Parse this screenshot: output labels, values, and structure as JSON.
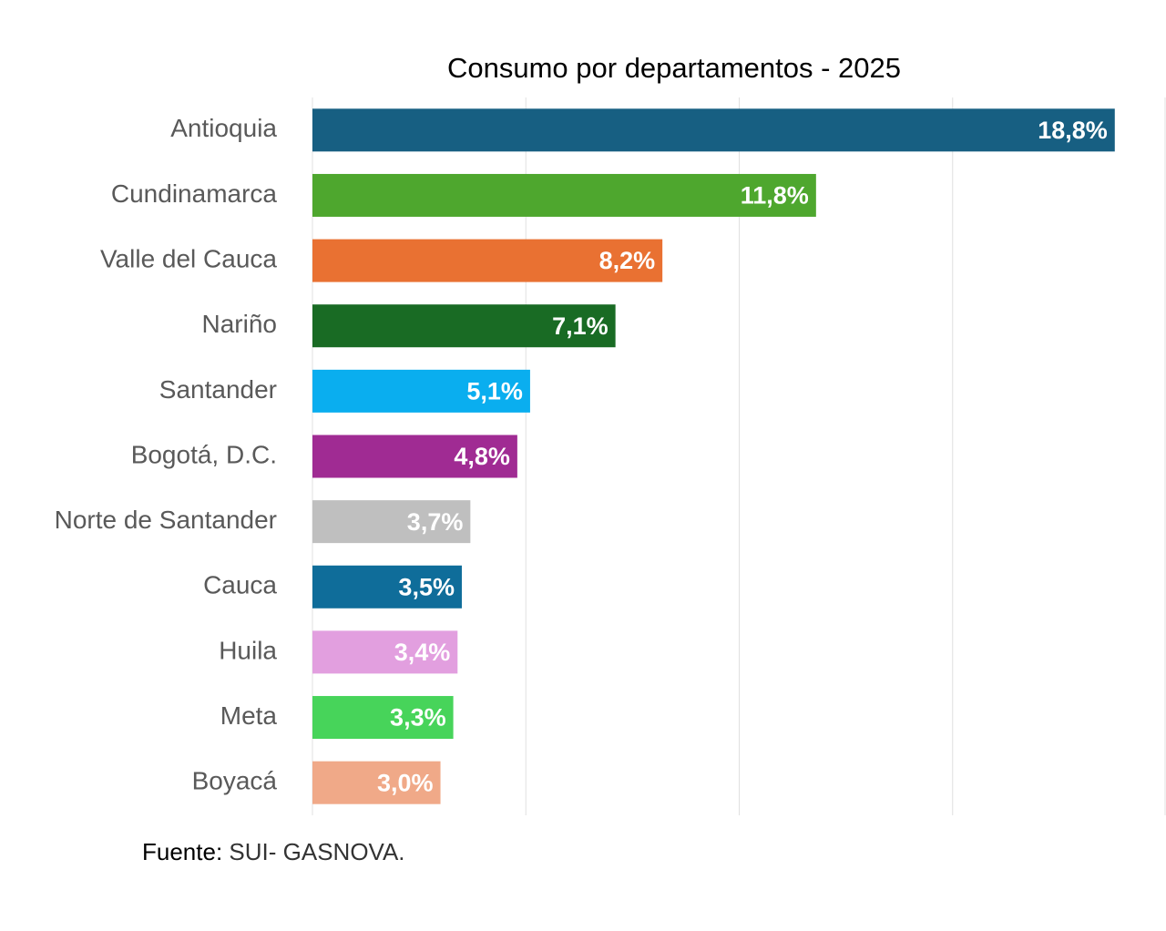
{
  "chart_data": {
    "type": "bar",
    "orientation": "horizontal",
    "title": "Consumo por departamentos - 2025",
    "categories": [
      "Antioquia",
      "Cundinamarca",
      "Valle del Cauca",
      "Nariño",
      "Santander",
      "Bogotá, D.C.",
      "Norte de Santander",
      "Cauca",
      "Huila",
      "Meta",
      "Boyacá"
    ],
    "values": [
      18.8,
      11.8,
      8.2,
      7.1,
      5.1,
      4.8,
      3.7,
      3.5,
      3.4,
      3.3,
      3.0
    ],
    "value_labels": [
      "18,8%",
      "11,8%",
      "8,2%",
      "7,1%",
      "5,1%",
      "4,8%",
      "3,7%",
      "3,5%",
      "3,4%",
      "3,3%",
      "3,0%"
    ],
    "colors": [
      "#175f82",
      "#4ea72e",
      "#e97132",
      "#196b24",
      "#0aaeef",
      "#a02b93",
      "#bfbfbf",
      "#0f6d9a",
      "#e29fdf",
      "#47d45a",
      "#f0a988"
    ],
    "xlim": [
      0,
      20
    ],
    "xticks": [
      0,
      5,
      10,
      15,
      20
    ],
    "grid": true,
    "source_label": "Fuente:",
    "source_text": "SUI- GASNOVA."
  }
}
